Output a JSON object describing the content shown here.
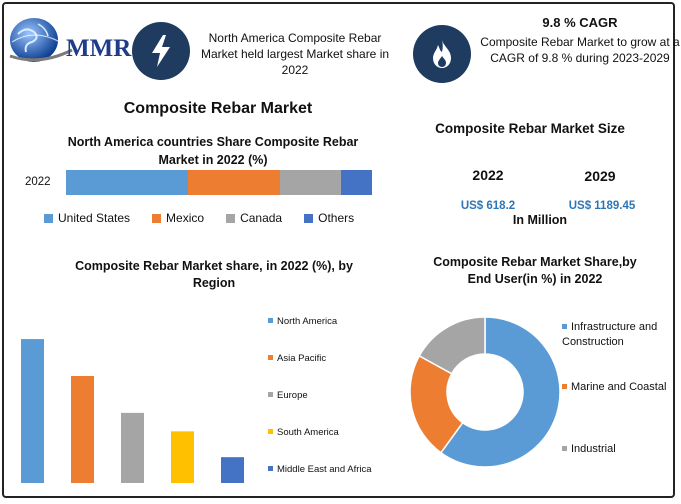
{
  "logo": {
    "text": "MMR"
  },
  "header": {
    "fact1": "North America Composite Rebar Market held largest Market share in 2022",
    "cagr_title": "9.8 % CAGR",
    "cagr_text": "Composite Rebar Market to grow at a CAGR of 9.8 % during 2023-2029"
  },
  "main_title": "Composite Rebar Market",
  "market_size": {
    "title": "Composite Rebar Market Size",
    "year1": "2022",
    "value1": "US$ 618.2",
    "year2": "2029",
    "value2": "US$ 1189.45",
    "unit": "In Million"
  },
  "colors": {
    "blue": "#5b9bd5",
    "orange": "#ed7d31",
    "gray": "#a5a5a5",
    "gold": "#ffc000",
    "darkblue": "#4472c4",
    "navy": "#1f3b60",
    "value_blue": "#2e75b6"
  },
  "chart_data": [
    {
      "type": "bar",
      "orientation": "horizontal-stacked",
      "title": "North America countries Share Composite Rebar Market in 2022 (%)",
      "categories": [
        "2022"
      ],
      "series": [
        {
          "name": "United States",
          "values": [
            40
          ],
          "color": "#5b9bd5"
        },
        {
          "name": "Mexico",
          "values": [
            30
          ],
          "color": "#ed7d31"
        },
        {
          "name": "Canada",
          "values": [
            20
          ],
          "color": "#a5a5a5"
        },
        {
          "name": "Others",
          "values": [
            10
          ],
          "color": "#4472c4"
        }
      ],
      "legend": "bottom"
    },
    {
      "type": "bar",
      "title": "Composite Rebar Market share, in 2022 (%), by Region",
      "categories": [
        "North America",
        "Asia Pacific",
        "Europe",
        "South America",
        "Middle East and Africa"
      ],
      "values": [
        39,
        29,
        19,
        14,
        7
      ],
      "colors": [
        "#5b9bd5",
        "#ed7d31",
        "#a5a5a5",
        "#ffc000",
        "#4472c4"
      ],
      "ylim": [
        0,
        42
      ],
      "legend": "right"
    },
    {
      "type": "pie",
      "title": "Composite Rebar Market Share,by End User(in %) in 2022",
      "labels": [
        "Infrastructure and Construction",
        "Marine and Coastal",
        "Industrial"
      ],
      "values": [
        60,
        23,
        17
      ],
      "colors": [
        "#5b9bd5",
        "#ed7d31",
        "#a5a5a5"
      ],
      "legend": "right"
    }
  ]
}
